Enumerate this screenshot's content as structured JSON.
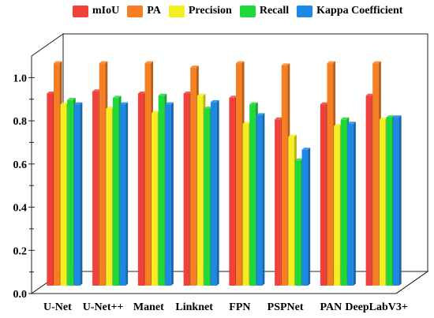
{
  "chart_data": {
    "type": "bar",
    "categories": [
      "U-Net",
      "U-Net++",
      "Manet",
      "Linknet",
      "FPN",
      "PSPNet",
      "PAN",
      "DeepLabV3+"
    ],
    "series": [
      {
        "name": "mIoU",
        "color": "#f0413b",
        "values": [
          0.89,
          0.9,
          0.89,
          0.89,
          0.87,
          0.77,
          0.84,
          0.88
        ]
      },
      {
        "name": "PA",
        "color": "#f57f22",
        "values": [
          1.03,
          1.03,
          1.03,
          1.01,
          1.03,
          1.02,
          1.03,
          1.03
        ]
      },
      {
        "name": "Precision",
        "color": "#f7ee21",
        "values": [
          0.84,
          0.82,
          0.8,
          0.88,
          0.75,
          0.69,
          0.74,
          0.77
        ]
      },
      {
        "name": "Recall",
        "color": "#1fd93a",
        "values": [
          0.86,
          0.87,
          0.88,
          0.82,
          0.84,
          0.58,
          0.77,
          0.78
        ]
      },
      {
        "name": "Kappa Coefficient",
        "color": "#1e88e5",
        "values": [
          0.84,
          0.84,
          0.84,
          0.85,
          0.79,
          0.63,
          0.75,
          0.78
        ]
      }
    ],
    "yticks": [
      "0.0",
      "0.2",
      "0.4",
      "0.6",
      "0.8",
      "1.0"
    ],
    "ylim": [
      0,
      1.1
    ],
    "grid": false,
    "legend_position": "top"
  }
}
